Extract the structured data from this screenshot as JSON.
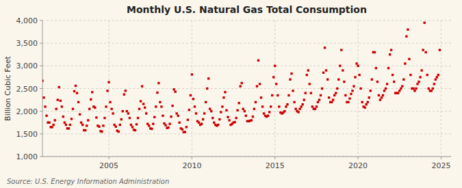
{
  "chart_data": {
    "type": "scatter",
    "title": "Monthly U.S. Natural Gas Total Consumption",
    "ylabel": "Billion Cubic Feet",
    "source": "Source: U.S. Energy Information Administration",
    "color": "#cc0000",
    "marker": "square",
    "grid": true,
    "xlim": [
      2001.0,
      2025.6
    ],
    "xticks": [
      2005,
      2010,
      2015,
      2020,
      2025
    ],
    "ylim": [
      1000,
      4000
    ],
    "yticks": [
      {
        "value": 1000,
        "label": "1,000"
      },
      {
        "value": 1500,
        "label": "1,500"
      },
      {
        "value": 2000,
        "label": "2,000"
      },
      {
        "value": 2500,
        "label": "2,500"
      },
      {
        "value": 3000,
        "label": "3,000"
      },
      {
        "value": 3500,
        "label": "3,500"
      },
      {
        "value": 4000,
        "label": "4,000"
      }
    ],
    "x": [
      2001.0,
      2001.083,
      2001.167,
      2001.25,
      2001.333,
      2001.417,
      2001.5,
      2001.583,
      2001.667,
      2001.75,
      2001.833,
      2001.917,
      2002.0,
      2002.083,
      2002.167,
      2002.25,
      2002.333,
      2002.417,
      2002.5,
      2002.583,
      2002.667,
      2002.75,
      2002.833,
      2002.917,
      2003.0,
      2003.083,
      2003.167,
      2003.25,
      2003.333,
      2003.417,
      2003.5,
      2003.583,
      2003.667,
      2003.75,
      2003.833,
      2003.917,
      2004.0,
      2004.083,
      2004.167,
      2004.25,
      2004.333,
      2004.417,
      2004.5,
      2004.583,
      2004.667,
      2004.75,
      2004.833,
      2004.917,
      2005.0,
      2005.083,
      2005.167,
      2005.25,
      2005.333,
      2005.417,
      2005.5,
      2005.583,
      2005.667,
      2005.75,
      2005.833,
      2005.917,
      2006.0,
      2006.083,
      2006.167,
      2006.25,
      2006.333,
      2006.417,
      2006.5,
      2006.583,
      2006.667,
      2006.75,
      2006.833,
      2006.917,
      2007.0,
      2007.083,
      2007.167,
      2007.25,
      2007.333,
      2007.417,
      2007.5,
      2007.583,
      2007.667,
      2007.75,
      2007.833,
      2007.917,
      2008.0,
      2008.083,
      2008.167,
      2008.25,
      2008.333,
      2008.417,
      2008.5,
      2008.583,
      2008.667,
      2008.75,
      2008.833,
      2008.917,
      2009.0,
      2009.083,
      2009.167,
      2009.25,
      2009.333,
      2009.417,
      2009.5,
      2009.583,
      2009.667,
      2009.75,
      2009.833,
      2009.917,
      2010.0,
      2010.083,
      2010.167,
      2010.25,
      2010.333,
      2010.417,
      2010.5,
      2010.583,
      2010.667,
      2010.75,
      2010.833,
      2010.917,
      2011.0,
      2011.083,
      2011.167,
      2011.25,
      2011.333,
      2011.417,
      2011.5,
      2011.583,
      2011.667,
      2011.75,
      2011.833,
      2011.917,
      2012.0,
      2012.083,
      2012.167,
      2012.25,
      2012.333,
      2012.417,
      2012.5,
      2012.583,
      2012.667,
      2012.75,
      2012.833,
      2012.917,
      2013.0,
      2013.083,
      2013.167,
      2013.25,
      2013.333,
      2013.417,
      2013.5,
      2013.583,
      2013.667,
      2013.75,
      2013.833,
      2013.917,
      2014.0,
      2014.083,
      2014.167,
      2014.25,
      2014.333,
      2014.417,
      2014.5,
      2014.583,
      2014.667,
      2014.75,
      2014.833,
      2014.917,
      2015.0,
      2015.083,
      2015.167,
      2015.25,
      2015.333,
      2015.417,
      2015.5,
      2015.583,
      2015.667,
      2015.75,
      2015.833,
      2015.917,
      2016.0,
      2016.083,
      2016.167,
      2016.25,
      2016.333,
      2016.417,
      2016.5,
      2016.583,
      2016.667,
      2016.75,
      2016.833,
      2016.917,
      2017.0,
      2017.083,
      2017.167,
      2017.25,
      2017.333,
      2017.417,
      2017.5,
      2017.583,
      2017.667,
      2017.75,
      2017.833,
      2017.917,
      2018.0,
      2018.083,
      2018.167,
      2018.25,
      2018.333,
      2018.417,
      2018.5,
      2018.583,
      2018.667,
      2018.75,
      2018.833,
      2018.917,
      2019.0,
      2019.083,
      2019.167,
      2019.25,
      2019.333,
      2019.417,
      2019.5,
      2019.583,
      2019.667,
      2019.75,
      2019.833,
      2019.917,
      2020.0,
      2020.083,
      2020.167,
      2020.25,
      2020.333,
      2020.417,
      2020.5,
      2020.583,
      2020.667,
      2020.75,
      2020.833,
      2020.917,
      2021.0,
      2021.083,
      2021.167,
      2021.25,
      2021.333,
      2021.417,
      2021.5,
      2021.583,
      2021.667,
      2021.75,
      2021.833,
      2021.917,
      2022.0,
      2022.083,
      2022.167,
      2022.25,
      2022.333,
      2022.417,
      2022.5,
      2022.583,
      2022.667,
      2022.75,
      2022.833,
      2022.917,
      2023.0,
      2023.083,
      2023.167,
      2023.25,
      2023.333,
      2023.417,
      2023.5,
      2023.583,
      2023.667,
      2023.75,
      2023.833,
      2023.917,
      2024.0,
      2024.083,
      2024.167,
      2024.25,
      2024.333,
      2024.417,
      2024.5,
      2024.583,
      2024.667,
      2024.75,
      2024.833,
      2024.917
    ],
    "values": [
      2670,
      2300,
      2100,
      1900,
      1750,
      1750,
      1650,
      1650,
      1700,
      1800,
      2050,
      2250,
      2530,
      2230,
      2100,
      1880,
      1750,
      1700,
      1620,
      1620,
      1700,
      1830,
      2050,
      2440,
      2560,
      2400,
      2200,
      1930,
      1750,
      1700,
      1580,
      1580,
      1680,
      1800,
      2050,
      2260,
      2420,
      2100,
      2080,
      1860,
      1680,
      1660,
      1560,
      1550,
      1680,
      1850,
      2100,
      2450,
      2640,
      2200,
      2050,
      1950,
      1700,
      1660,
      1570,
      1550,
      1700,
      1820,
      2000,
      2370,
      2450,
      2000,
      1950,
      1850,
      1700,
      1650,
      1590,
      1580,
      1710,
      1850,
      2050,
      2220,
      2550,
      2160,
      2080,
      1950,
      1720,
      1680,
      1620,
      1610,
      1720,
      1870,
      2100,
      2410,
      2620,
      2200,
      2100,
      1900,
      1730,
      1690,
      1630,
      1640,
      1720,
      1880,
      2120,
      2480,
      2430,
      1950,
      1900,
      1750,
      1620,
      1600,
      1540,
      1540,
      1650,
      1810,
      2030,
      2350,
      2810,
      2270,
      2100,
      1950,
      1780,
      1750,
      1700,
      1720,
      1820,
      1950,
      2200,
      2500,
      2720,
      2050,
      2000,
      1850,
      1750,
      1700,
      1680,
      1700,
      1820,
      1980,
      2100,
      2300,
      2420,
      2020,
      1870,
      1800,
      1700,
      1720,
      1750,
      1760,
      1850,
      2020,
      2180,
      2550,
      2620,
      2050,
      2000,
      1900,
      1780,
      1780,
      1790,
      1800,
      1880,
      2050,
      2200,
      2550,
      3120,
      2600,
      2300,
      2100,
      1950,
      1900,
      1880,
      1900,
      1980,
      2100,
      2350,
      2750,
      3000,
      2600,
      2350,
      2100,
      1970,
      1950,
      1970,
      2000,
      2100,
      2150,
      2350,
      2700,
      2830,
      2450,
      2200,
      2050,
      2000,
      1980,
      2050,
      2100,
      2150,
      2250,
      2400,
      2800,
      2900,
      2600,
      2400,
      2100,
      2050,
      2050,
      2100,
      2200,
      2250,
      2350,
      2500,
      2850,
      3400,
      2900,
      2700,
      2300,
      2200,
      2200,
      2250,
      2350,
      2400,
      2500,
      2700,
      3000,
      3350,
      2900,
      2650,
      2350,
      2200,
      2200,
      2280,
      2380,
      2450,
      2550,
      2750,
      3050,
      3000,
      2800,
      2500,
      2200,
      2100,
      2080,
      2150,
      2200,
      2300,
      2450,
      2700,
      3300,
      3300,
      2950,
      2650,
      2350,
      2250,
      2300,
      2350,
      2450,
      2500,
      2600,
      2950,
      3250,
      3350,
      2800,
      2650,
      2400,
      2400,
      2400,
      2450,
      2500,
      2550,
      2700,
      3050,
      3650,
      3800,
      3150,
      2800,
      2500,
      2500,
      2450,
      2500,
      2600,
      2650,
      2750,
      2900,
      3350,
      3950,
      3300,
      2800,
      2500,
      2450,
      2450,
      2500,
      2600,
      2700,
      2750,
      2800,
      3350
    ]
  }
}
